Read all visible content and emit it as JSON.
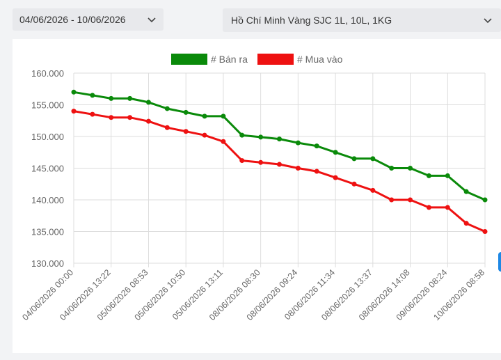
{
  "filters": {
    "date_range": "04/06/2026 - 10/06/2026",
    "product": "Hồ Chí Minh Vàng SJC 1L, 10L, 1KG",
    "chevron_icon": "chevron-down-icon"
  },
  "colors": {
    "sell": "#0a8a0a",
    "buy": "#ee1111",
    "grid": "#dddddd",
    "text": "#666666"
  },
  "chart_data": {
    "type": "line",
    "title": "",
    "xlabel": "",
    "ylabel": "",
    "ylim": [
      130000,
      160000
    ],
    "yticks": [
      "130.000",
      "135.000",
      "140.000",
      "145.000",
      "150.000",
      "155.000",
      "160.000"
    ],
    "tick_labels": [
      "04/06/2026 00:00",
      "04/06/2026 13:22",
      "05/06/2026 08:53",
      "05/06/2026 10:50",
      "05/06/2026 13:11",
      "08/06/2026 08:30",
      "08/06/2026 09:24",
      "08/06/2026 11:34",
      "08/06/2026 13:37",
      "08/06/2026 14:08",
      "09/06/2026 08:24",
      "10/06/2026 08:58"
    ],
    "legend_position": "top-center",
    "grid": true,
    "series": [
      {
        "name": "# Bán ra",
        "values": [
          157000,
          156500,
          156000,
          156000,
          155400,
          154400,
          153800,
          153200,
          153200,
          150200,
          149900,
          149600,
          149000,
          148500,
          147500,
          146500,
          146500,
          145000,
          145000,
          143800,
          143800,
          141300,
          140000
        ]
      },
      {
        "name": "# Mua vào",
        "values": [
          154000,
          153500,
          153000,
          153000,
          152400,
          151400,
          150800,
          150200,
          149200,
          146200,
          145900,
          145600,
          145000,
          144500,
          143500,
          142500,
          141500,
          140000,
          140000,
          138800,
          138800,
          136300,
          135000
        ]
      }
    ]
  }
}
